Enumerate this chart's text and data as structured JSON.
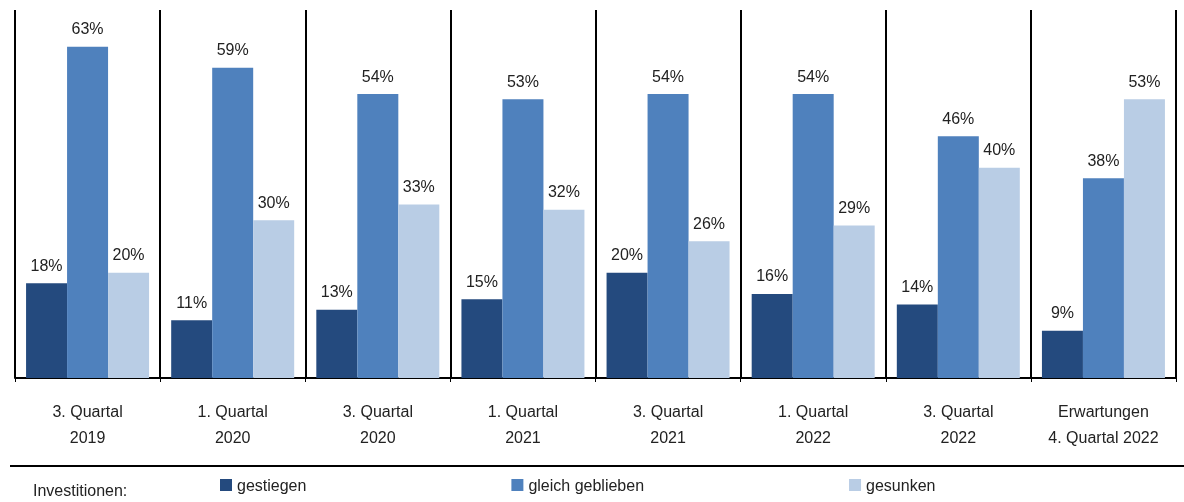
{
  "chart_data": {
    "type": "bar",
    "legend_title": "Investitionen:",
    "categories": [
      "3. Quartal\n2019",
      "1. Quartal\n2020",
      "3. Quartal\n2020",
      "1. Quartal\n2021",
      "3. Quartal\n2021",
      "1. Quartal\n2022",
      "3. Quartal\n2022",
      "Erwartungen\n4. Quartal 2022"
    ],
    "series": [
      {
        "name": "gestiegen",
        "color": "#244a7e",
        "values": [
          18,
          11,
          13,
          15,
          20,
          16,
          14,
          9
        ],
        "value_labels": [
          "18%",
          "11%",
          "13%",
          "15%",
          "20%",
          "16%",
          "14%",
          "9%"
        ]
      },
      {
        "name": "gleich geblieben",
        "color": "#4f81bd",
        "values": [
          63,
          59,
          54,
          53,
          54,
          54,
          46,
          38
        ],
        "value_labels": [
          "63%",
          "59%",
          "54%",
          "53%",
          "54%",
          "54%",
          "46%",
          "38%"
        ]
      },
      {
        "name": "gesunken",
        "color": "#b9cde5",
        "values": [
          20,
          30,
          33,
          32,
          26,
          29,
          40,
          53
        ],
        "value_labels": [
          "20%",
          "30%",
          "33%",
          "32%",
          "26%",
          "29%",
          "40%",
          "53%"
        ]
      }
    ],
    "grid": "x",
    "legend": "bottom"
  }
}
